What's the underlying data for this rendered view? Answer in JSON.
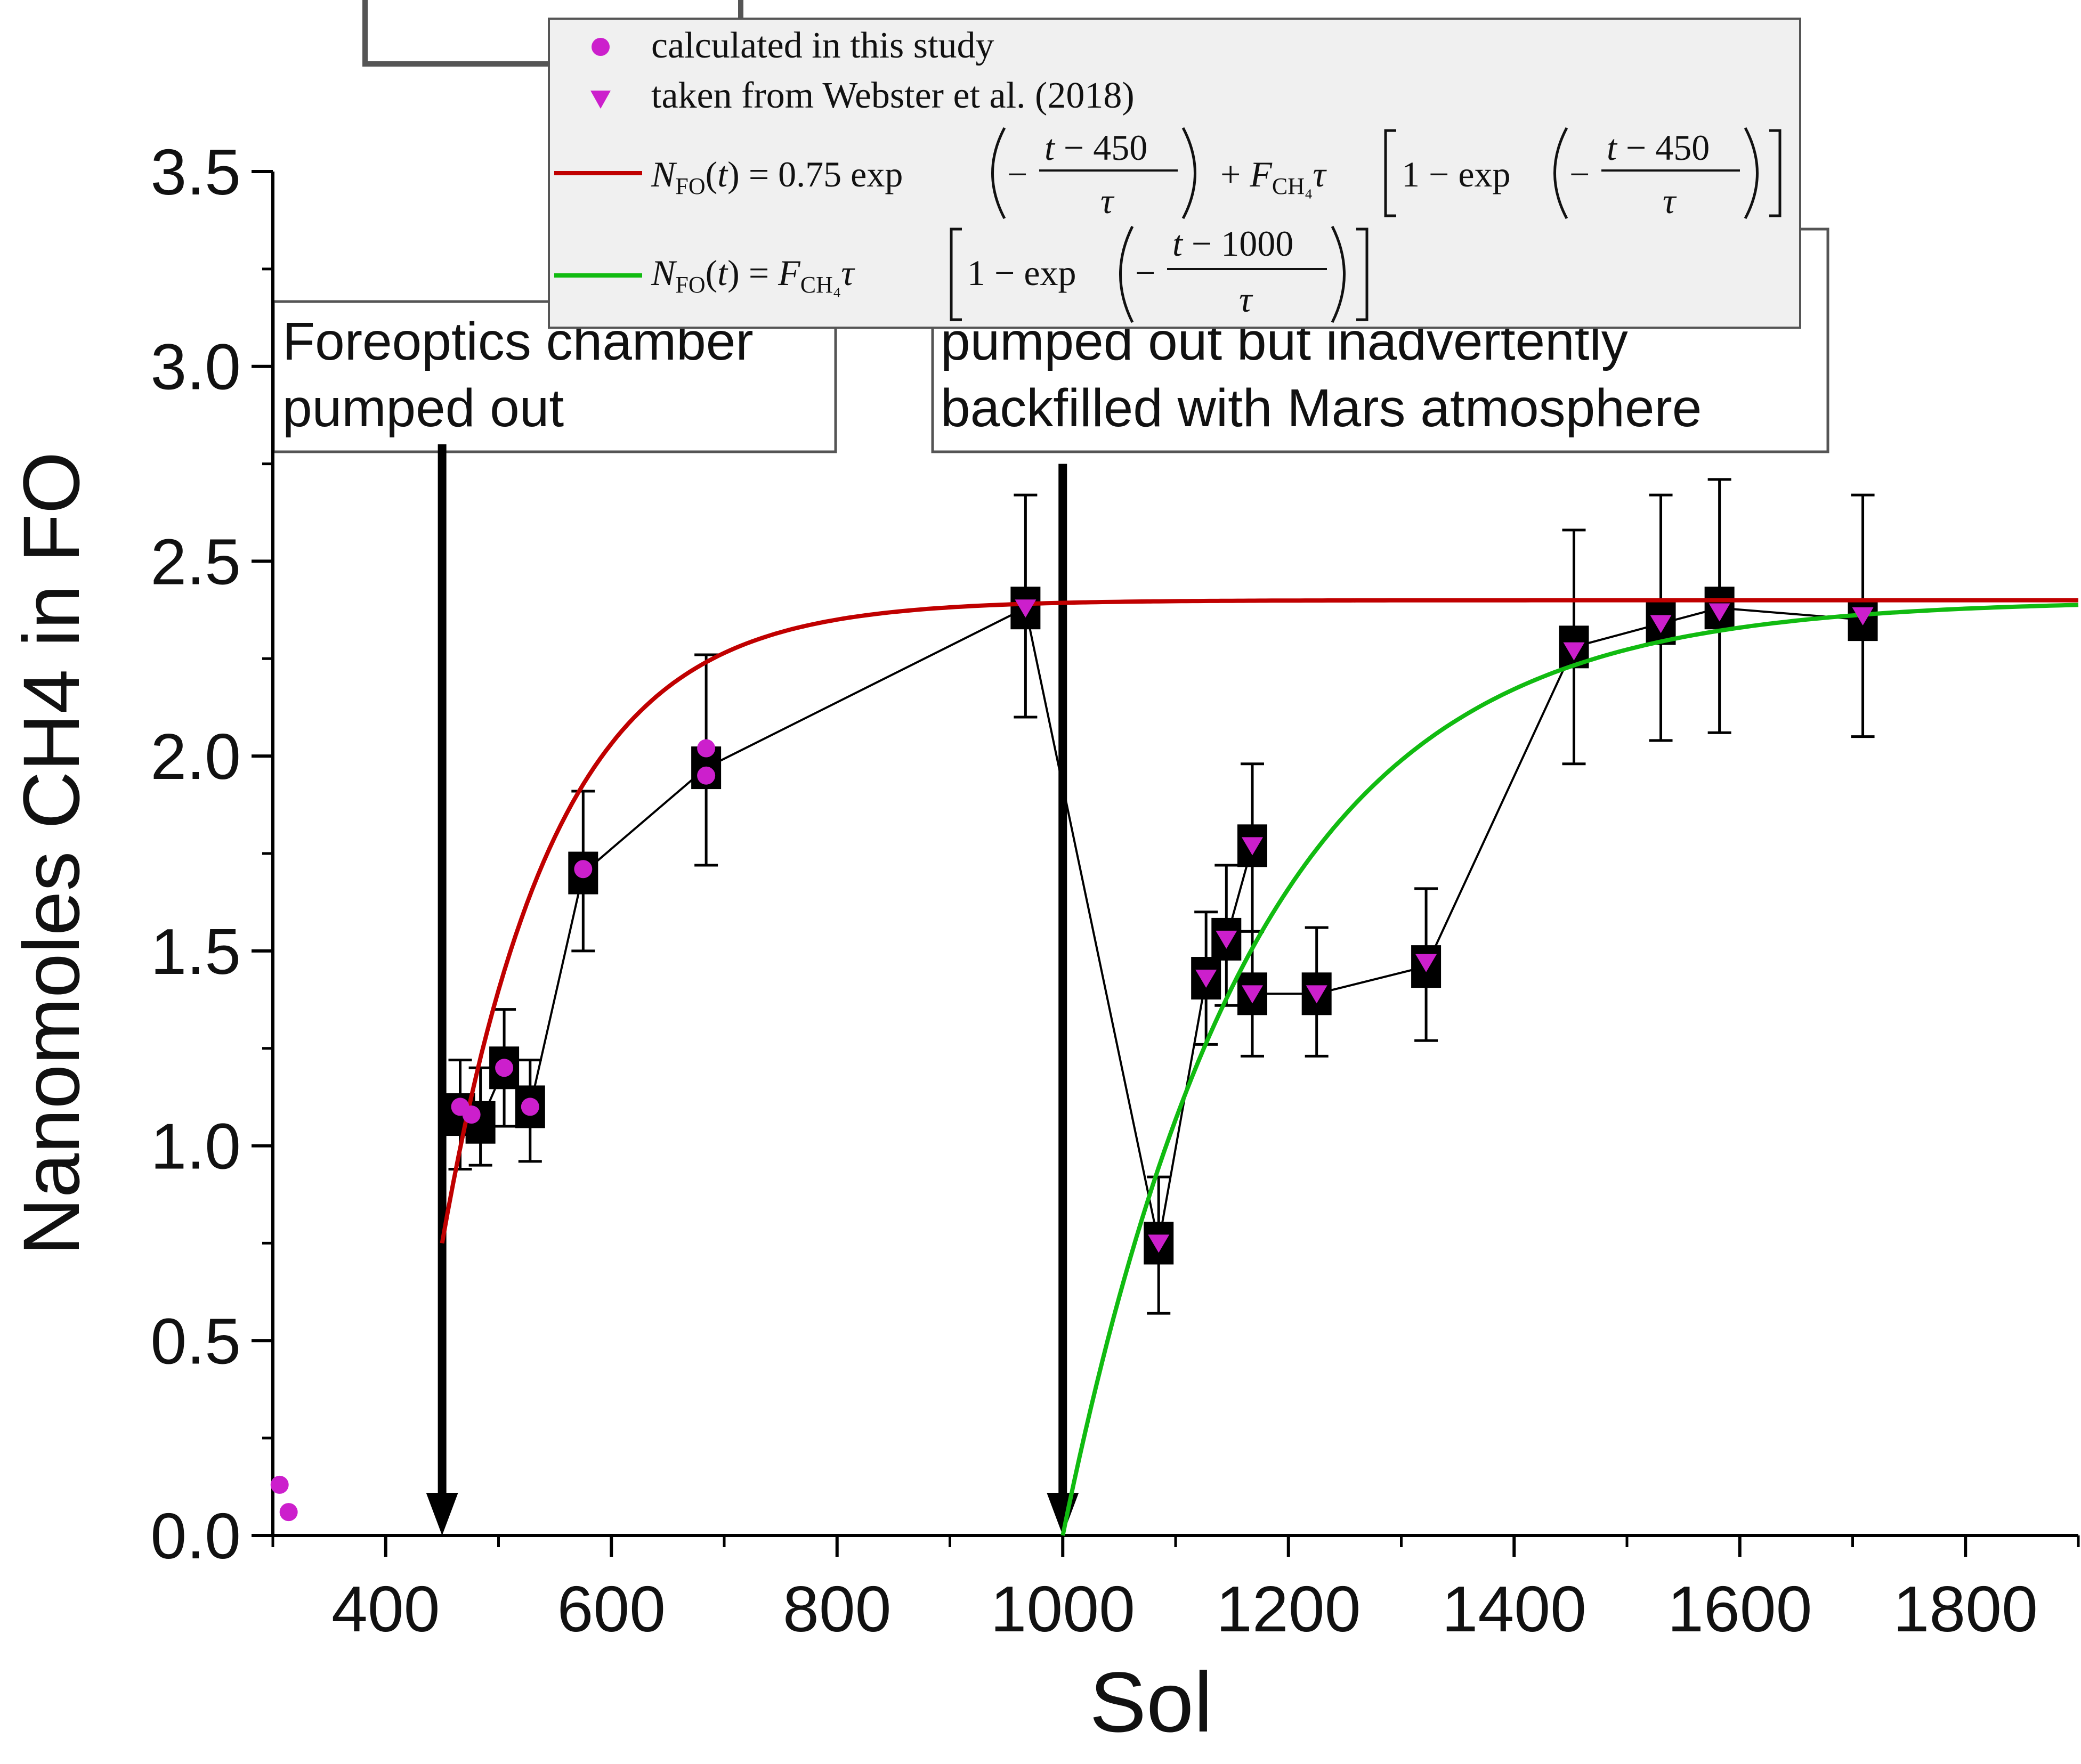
{
  "chart_data": {
    "type": "scatter",
    "xlabel": "Sol",
    "ylabel": "Nanomoles CH4 in FO",
    "xlim": [
      300,
      1900
    ],
    "ylim": [
      0.0,
      3.5
    ],
    "x_ticks": [
      "400",
      "600",
      "800",
      "1000",
      "1200",
      "1400",
      "1600",
      "1800"
    ],
    "y_ticks": [
      "0.0",
      "0.5",
      "1.0",
      "1.5",
      "2.0",
      "2.5",
      "3.0",
      "3.5"
    ],
    "grid": false,
    "legend_position": "top-right",
    "series": [
      {
        "name": "calculated in this study",
        "marker": "circle",
        "color": "#cc1fcc",
        "points": [
          [
            466,
            1.1
          ],
          [
            476,
            1.08
          ],
          [
            505,
            1.2
          ],
          [
            528,
            1.1
          ],
          [
            575,
            1.71
          ],
          [
            684,
            2.02
          ],
          [
            684,
            1.95
          ],
          [
            306,
            0.13
          ],
          [
            314,
            0.06
          ]
        ]
      },
      {
        "name": "taken from Webster et al. (2018)",
        "marker": "triangle-down",
        "color": "#cc1fcc",
        "points": [
          [
            967,
            2.38
          ],
          [
            1085,
            0.75
          ],
          [
            1127,
            1.43
          ],
          [
            1145,
            1.53
          ],
          [
            1168,
            1.77
          ],
          [
            1168,
            1.39
          ],
          [
            1225,
            1.39
          ],
          [
            1322,
            1.47
          ],
          [
            1453,
            2.27
          ],
          [
            1530,
            2.34
          ],
          [
            1582,
            2.37
          ],
          [
            1709,
            2.36
          ]
        ]
      },
      {
        "name": "N_FO(t) = 0.75 exp(-(t-450)/τ) + F_CH4 τ [1 - exp(-(t-450)/τ)]",
        "type": "line",
        "color": "#c00000",
        "x_start": 450,
        "x_end": 1900,
        "y_start": 0.75,
        "y_asymptote": 2.4,
        "tau": 100
      },
      {
        "name": "N_FO(t) = F_CH4 τ [1 - exp(-(t-1000)/τ)]",
        "type": "line",
        "color": "#11bb11",
        "x_start": 1000,
        "x_end": 1900,
        "y_start": 0.0,
        "y_asymptote": 2.4,
        "tau": 170
      }
    ],
    "measurements": [
      {
        "x": 466,
        "y": 1.08,
        "lo": 0.94,
        "hi": 1.22
      },
      {
        "x": 484,
        "y": 1.06,
        "lo": 0.95,
        "hi": 1.2
      },
      {
        "x": 505,
        "y": 1.2,
        "lo": 1.05,
        "hi": 1.35
      },
      {
        "x": 528,
        "y": 1.1,
        "lo": 0.96,
        "hi": 1.22
      },
      {
        "x": 575,
        "y": 1.7,
        "lo": 1.5,
        "hi": 1.91
      },
      {
        "x": 684,
        "y": 1.97,
        "lo": 1.72,
        "hi": 2.26
      },
      {
        "x": 967,
        "y": 2.38,
        "lo": 2.1,
        "hi": 2.67
      },
      {
        "x": 1085,
        "y": 0.75,
        "lo": 0.57,
        "hi": 0.92
      },
      {
        "x": 1127,
        "y": 1.43,
        "lo": 1.26,
        "hi": 1.6
      },
      {
        "x": 1145,
        "y": 1.53,
        "lo": 1.36,
        "hi": 1.72
      },
      {
        "x": 1168,
        "y": 1.77,
        "lo": 1.55,
        "hi": 1.98
      },
      {
        "x": 1168,
        "y": 1.39,
        "lo": 1.23,
        "hi": 1.55
      },
      {
        "x": 1225,
        "y": 1.39,
        "lo": 1.23,
        "hi": 1.56
      },
      {
        "x": 1322,
        "y": 1.46,
        "lo": 1.27,
        "hi": 1.66
      },
      {
        "x": 1453,
        "y": 2.28,
        "lo": 1.98,
        "hi": 2.58
      },
      {
        "x": 1530,
        "y": 2.34,
        "lo": 2.04,
        "hi": 2.67
      },
      {
        "x": 1582,
        "y": 2.38,
        "lo": 2.06,
        "hi": 2.71
      },
      {
        "x": 1709,
        "y": 2.35,
        "lo": 2.05,
        "hi": 2.67
      }
    ],
    "connector_sequence": [
      [
        466,
        1.08
      ],
      [
        484,
        1.06
      ],
      [
        505,
        1.2
      ],
      [
        528,
        1.1
      ],
      [
        575,
        1.7
      ],
      [
        684,
        1.97
      ],
      [
        967,
        2.38
      ],
      [
        1085,
        0.75
      ],
      [
        1127,
        1.43
      ],
      [
        1145,
        1.53
      ],
      [
        1168,
        1.77
      ],
      [
        1168,
        1.39
      ],
      [
        1225,
        1.39
      ],
      [
        1322,
        1.46
      ],
      [
        1453,
        2.28
      ],
      [
        1530,
        2.34
      ],
      [
        1582,
        2.38
      ],
      [
        1709,
        2.35
      ]
    ],
    "markers": [
      {
        "x": 450,
        "y_top": 2.8,
        "label": "Foreoptics chamber pumped out"
      },
      {
        "x": 1000,
        "y_top": 2.75,
        "label": "pumped out but inadvertently backfilled with Mars atmosphere"
      }
    ],
    "annotations": [
      "Foreoptics chamber\npumped out",
      "pumped out but inadvertently\nbackfilled with Mars atmosphere"
    ]
  },
  "legend": {
    "items": [
      {
        "label": "calculated in this study"
      },
      {
        "label": "taken from Webster et al. (2018)"
      }
    ],
    "formula_red": "N_FO(t) = 0.75 exp(-(t-450)/τ) + F_CH4 τ [1 - exp(-(t-450)/τ)]",
    "formula_green": "N_FO(t) = F_CH4 τ [1 - exp(-(t-1000)/τ)]"
  },
  "colors": {
    "marker": "#cc1fcc",
    "red_curve": "#c00000",
    "green_curve": "#11bb11",
    "ink": "#000000",
    "legend_bg": "#f0f0f0"
  }
}
